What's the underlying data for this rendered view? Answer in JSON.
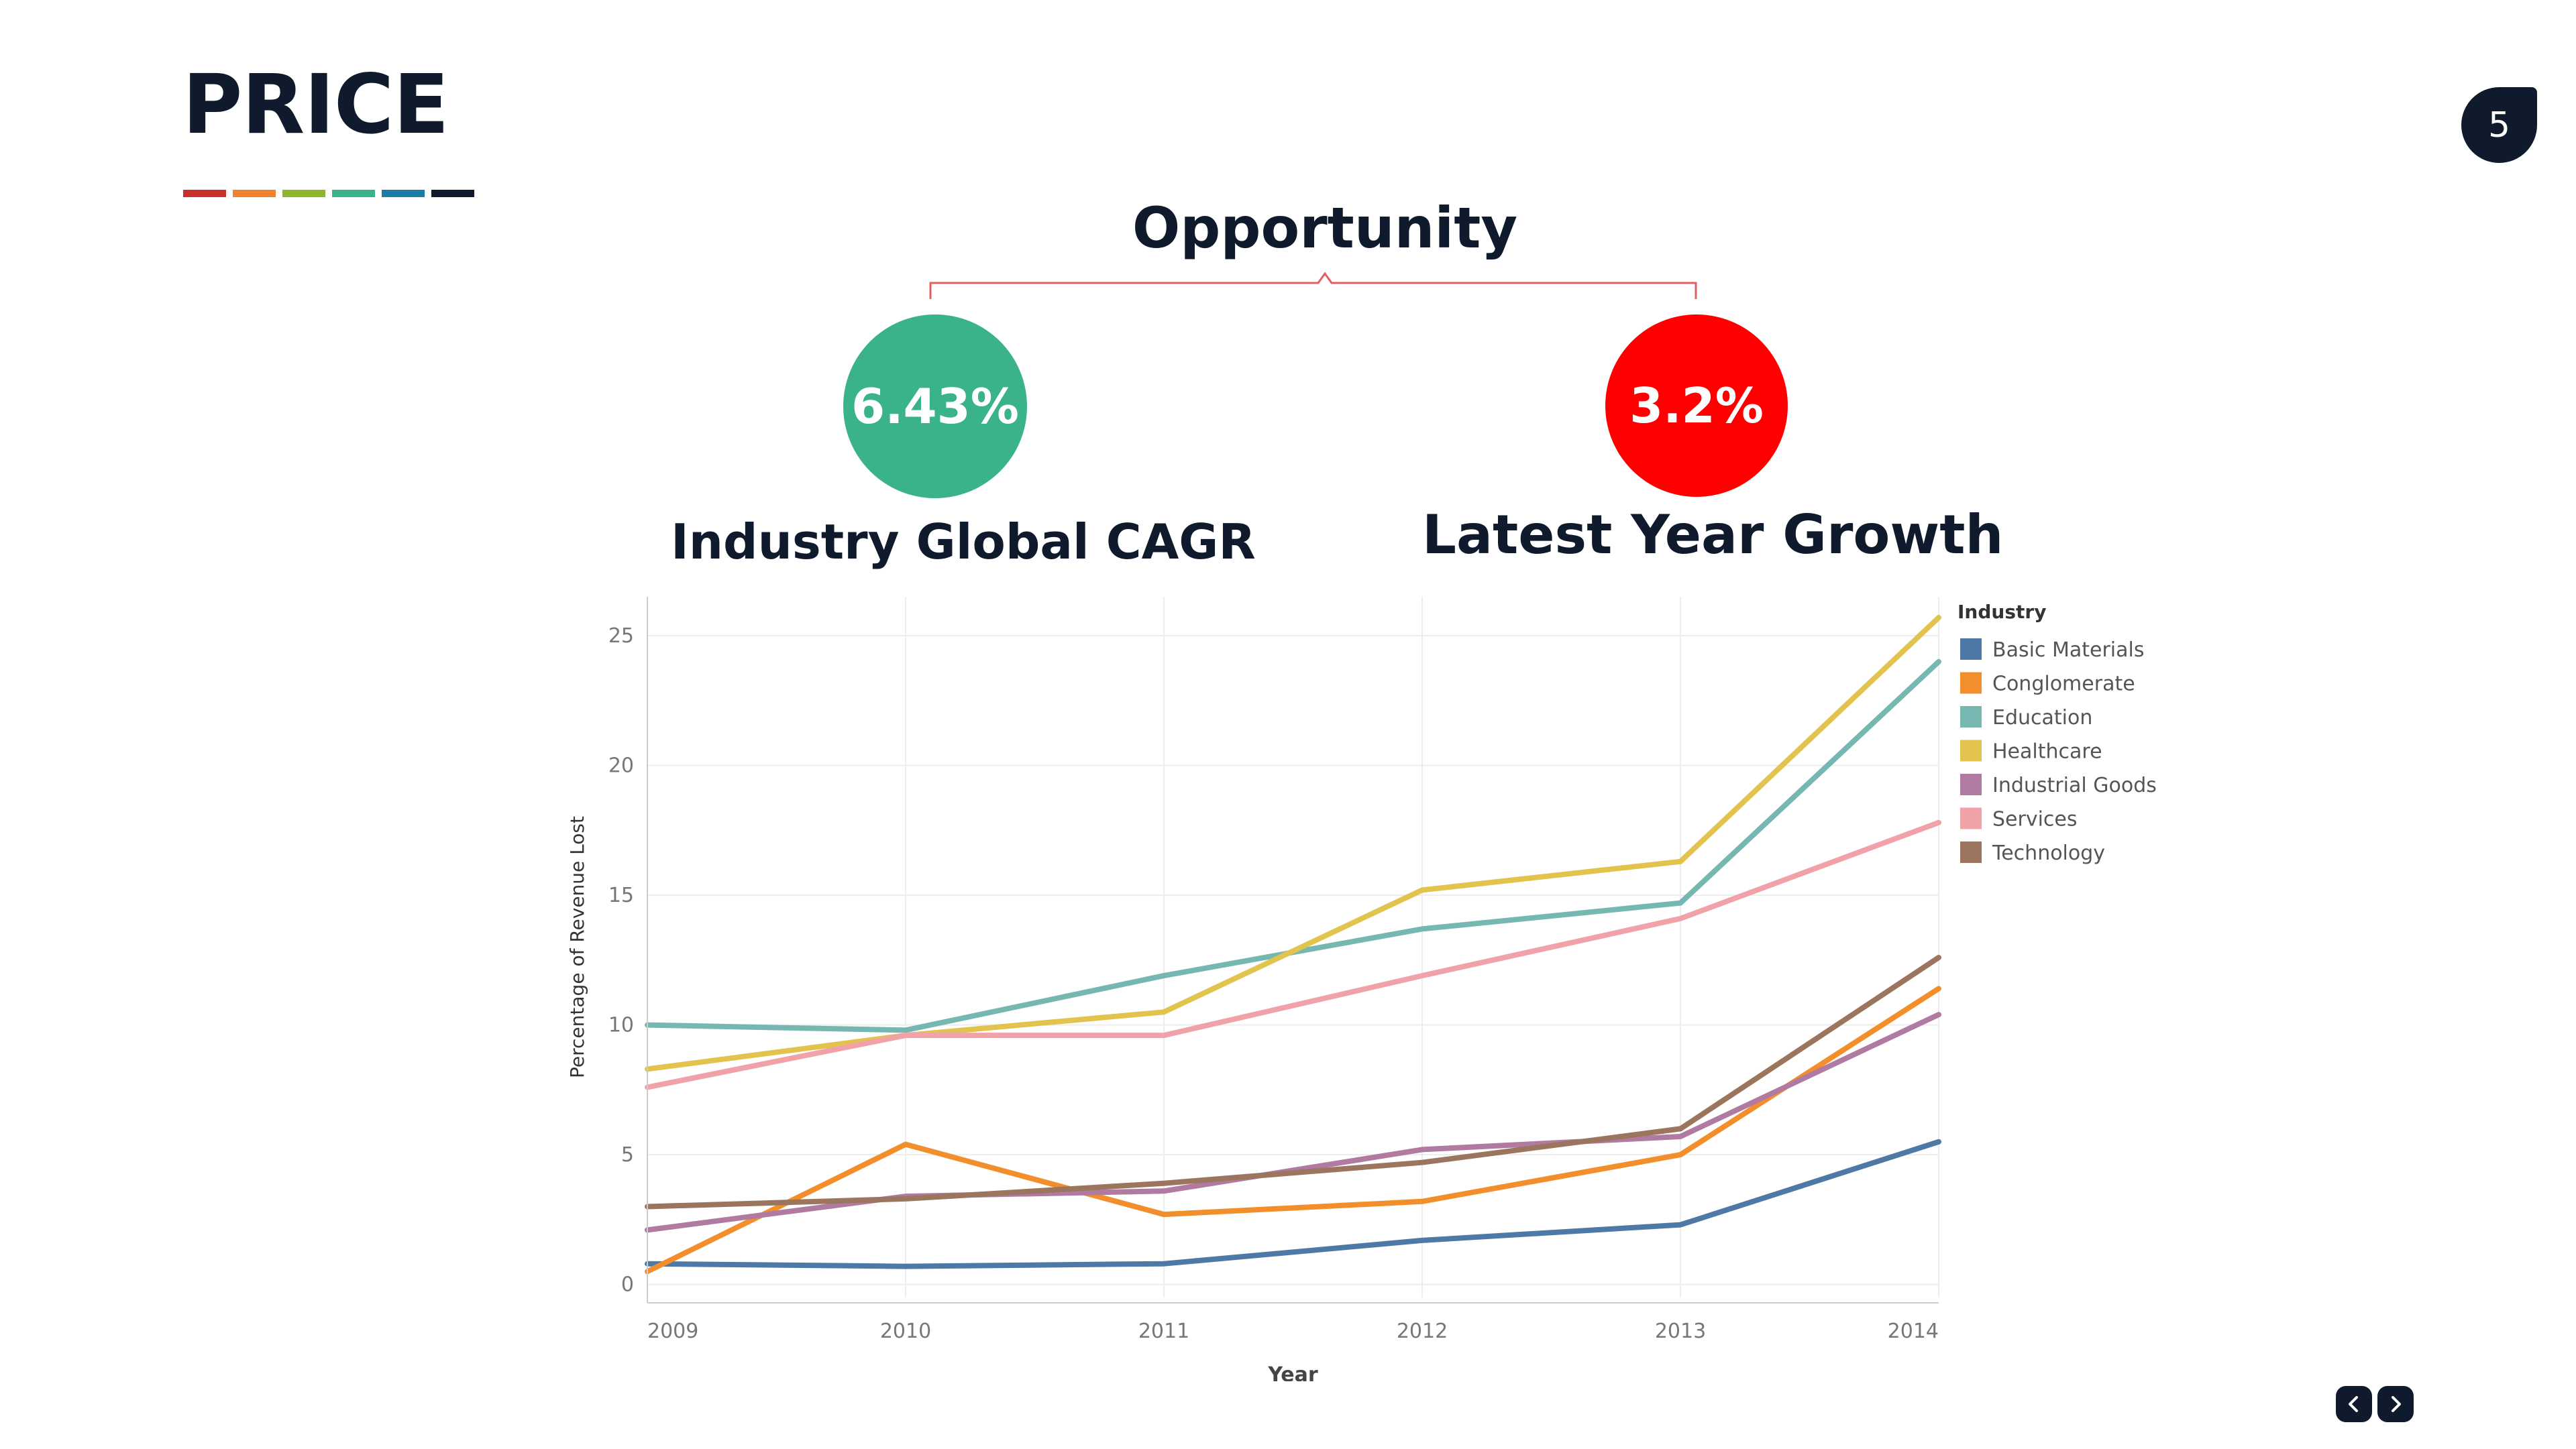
{
  "header": {
    "title": "PRICE",
    "page_number": "5",
    "accent_colors": [
      "#c9302c",
      "#f0822d",
      "#8db62d",
      "#3ab38a",
      "#1b7ca6",
      "#0f1b2d"
    ]
  },
  "opportunity": {
    "title": "Opportunity",
    "bracket_color": "#e06060",
    "metrics": [
      {
        "value": "6.43%",
        "label": "Industry Global CAGR",
        "color": "#3ab38a"
      },
      {
        "value": "3.2%",
        "label": "Latest Year Growth",
        "color": "#ff0000"
      }
    ]
  },
  "chart_data": {
    "type": "line",
    "title": "",
    "xlabel": "Year",
    "ylabel": "Percentage of Revenue Lost",
    "x": [
      2009,
      2010,
      2011,
      2012,
      2013,
      2014
    ],
    "ylim": [
      -0.5,
      26.5
    ],
    "yticks": [
      0,
      5,
      10,
      15,
      20,
      25
    ],
    "grid": true,
    "legend_title": "Industry",
    "legend_position": "right",
    "series": [
      {
        "name": "Basic Materials",
        "color": "#4e79a7",
        "values": [
          0.8,
          0.7,
          0.8,
          1.7,
          2.3,
          5.5
        ]
      },
      {
        "name": "Conglomerate",
        "color": "#f28e2b",
        "values": [
          0.5,
          5.4,
          2.7,
          3.2,
          5.0,
          11.4
        ]
      },
      {
        "name": "Education",
        "color": "#76b7b2",
        "values": [
          10.0,
          9.8,
          11.9,
          13.7,
          14.7,
          24.0
        ]
      },
      {
        "name": "Healthcare",
        "color": "#e2c34e",
        "values": [
          8.3,
          9.6,
          10.5,
          15.2,
          16.3,
          25.7
        ]
      },
      {
        "name": "Industrial Goods",
        "color": "#b07aa1",
        "values": [
          2.1,
          3.4,
          3.6,
          5.2,
          5.7,
          10.4
        ]
      },
      {
        "name": "Services",
        "color": "#f1a2a9",
        "values": [
          7.6,
          9.6,
          9.6,
          11.9,
          14.1,
          17.8
        ]
      },
      {
        "name": "Technology",
        "color": "#9c755f",
        "values": [
          3.0,
          3.3,
          3.9,
          4.7,
          6.0,
          12.6
        ]
      }
    ]
  },
  "nav": {
    "prev_icon": "chevron-left-icon",
    "next_icon": "chevron-right-icon"
  }
}
